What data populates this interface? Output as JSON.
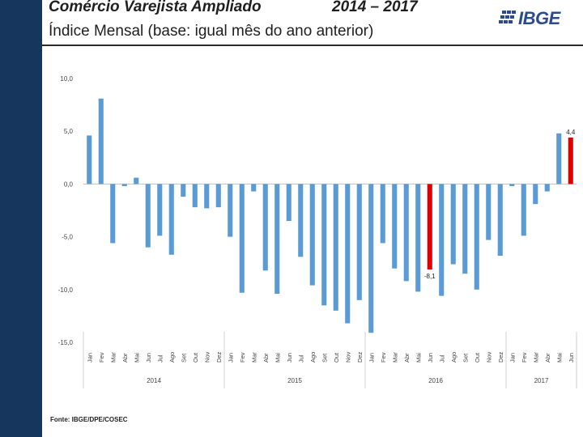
{
  "header": {
    "title_left": "Comércio Varejista Ampliado",
    "title_years": "2014 – 2017",
    "subtitle": "Índice Mensal  (base: igual mês do ano anterior)",
    "logo_text": "IBGE"
  },
  "footer": {
    "source": "Fonte: IBGE/DPE/COSEC"
  },
  "colors": {
    "sidebar": "#17365d",
    "bar": "#5b9bd5",
    "highlight": "#e00000",
    "logo": "#2a4c8e"
  },
  "chart_data": {
    "type": "bar",
    "title": "Comércio Varejista Ampliado 2014 – 2017",
    "subtitle": "Índice Mensal (base: igual mês do ano anterior)",
    "xlabel": "",
    "ylabel": "",
    "ylim": [
      -15.0,
      10.0
    ],
    "yticks": [
      10.0,
      5.0,
      0.0,
      -5.0,
      -10.0,
      -15.0
    ],
    "ytick_labels": [
      "10,0",
      "5,0",
      "0,0",
      "-5,0",
      "-10,0",
      "-15,0"
    ],
    "categories": [
      "Jan",
      "Fev",
      "Mar",
      "Abr",
      "Mai",
      "Jun",
      "Jul",
      "Ago",
      "Set",
      "Out",
      "Nov",
      "Dez",
      "Jan",
      "Fev",
      "Mar",
      "Abr",
      "Mai",
      "Jun",
      "Jul",
      "Ago",
      "Set",
      "Out",
      "Nov",
      "Dez",
      "Jan",
      "Fev",
      "Mar",
      "Abr",
      "Mai",
      "Jun",
      "Jul",
      "Ago",
      "Set",
      "Out",
      "Nov",
      "Dez",
      "Jan",
      "Fev",
      "Mar",
      "Abr",
      "Mai",
      "Jun"
    ],
    "values": [
      4.6,
      8.1,
      -5.6,
      -0.2,
      0.6,
      -6.0,
      -4.9,
      -6.7,
      -1.2,
      -2.2,
      -2.3,
      -2.2,
      -5.0,
      -10.3,
      -0.7,
      -8.2,
      -10.4,
      -3.5,
      -6.9,
      -9.6,
      -11.5,
      -12.0,
      -13.2,
      -11.0,
      -14.1,
      -5.6,
      -8.0,
      -9.2,
      -10.2,
      -8.1,
      -10.6,
      -7.6,
      -8.5,
      -10.0,
      -5.3,
      -6.8,
      -0.2,
      -4.9,
      -1.9,
      -0.7,
      4.8,
      4.4
    ],
    "highlight_indices": [
      29,
      41
    ],
    "year_groups": [
      {
        "label": "2014",
        "start": 0,
        "end": 11
      },
      {
        "label": "2015",
        "start": 12,
        "end": 23
      },
      {
        "label": "2016",
        "start": 24,
        "end": 35
      },
      {
        "label": "2017",
        "start": 36,
        "end": 41
      }
    ],
    "data_labels": [
      {
        "index": 29,
        "text": "-8,1"
      },
      {
        "index": 41,
        "text": "4,4"
      }
    ],
    "grid": false,
    "legend": "none"
  }
}
